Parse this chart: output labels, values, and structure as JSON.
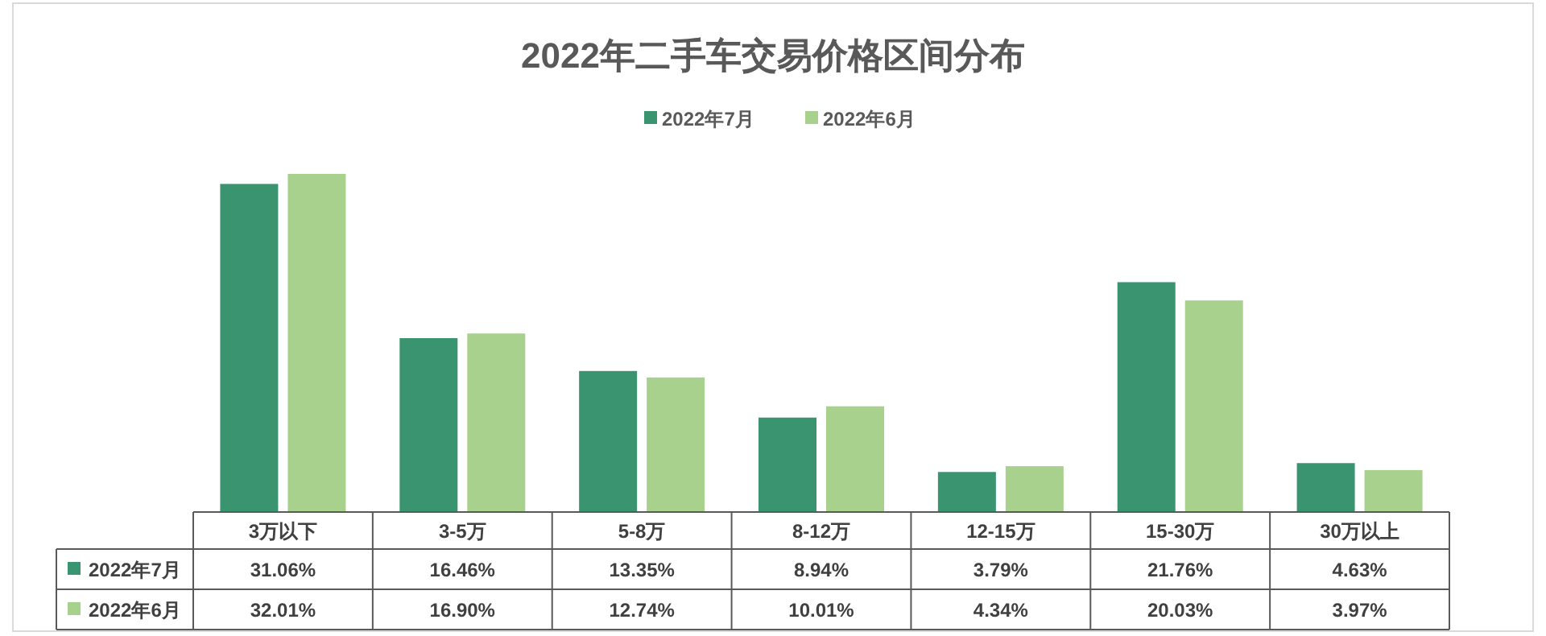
{
  "chart_data": {
    "type": "bar",
    "title": "2022年二手车交易价格区间分布",
    "categories": [
      "3万以下",
      "3-5万",
      "5-8万",
      "8-12万",
      "12-15万",
      "15-30万",
      "30万以上"
    ],
    "series": [
      {
        "name": "2022年7月",
        "color": "#3a9470",
        "values": [
          31.06,
          16.46,
          13.35,
          8.94,
          3.79,
          21.76,
          4.63
        ],
        "value_labels": [
          "31.06%",
          "16.46%",
          "13.35%",
          "8.94%",
          "3.79%",
          "21.76%",
          "4.63%"
        ]
      },
      {
        "name": "2022年6月",
        "color": "#a9d18e",
        "values": [
          32.01,
          16.9,
          12.74,
          10.01,
          4.34,
          20.03,
          3.97
        ],
        "value_labels": [
          "32.01%",
          "16.90%",
          "12.74%",
          "10.01%",
          "4.34%",
          "20.03%",
          "3.97%"
        ]
      }
    ],
    "legend": "top"
  }
}
